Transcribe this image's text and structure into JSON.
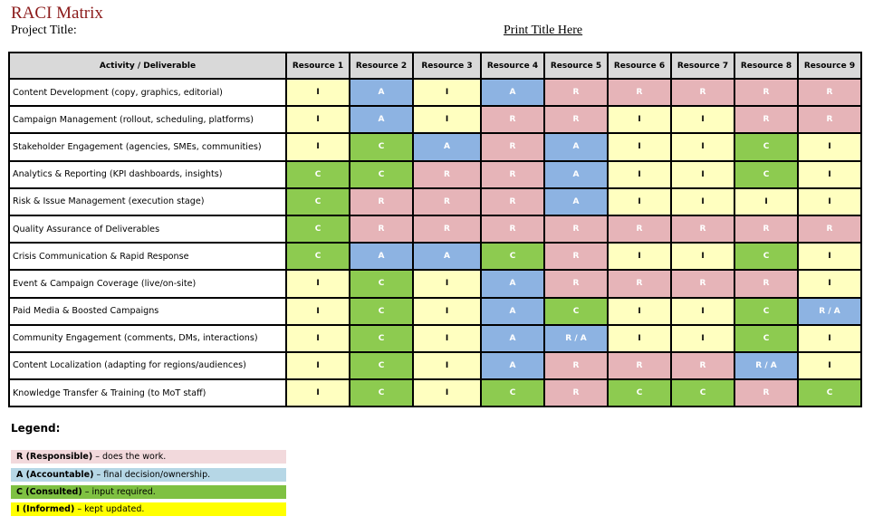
{
  "header": {
    "title": "RACI Matrix",
    "project_label": "Project Title:",
    "print_title": "Print Title Here"
  },
  "table": {
    "activity_header": "Activity / Deliverable",
    "resources": [
      "Resource 1",
      "Resource 2",
      "Resource 3",
      "Resource 4",
      "Resource 5",
      "Resource 6",
      "Resource 7",
      "Resource 8",
      "Resource 9"
    ],
    "rows": [
      {
        "activity": "Content Development (copy, graphics, editorial)",
        "cells": [
          "I",
          "A",
          "I",
          "A",
          "R",
          "R",
          "R",
          "R",
          "R"
        ]
      },
      {
        "activity": "Campaign Management (rollout, scheduling, platforms)",
        "cells": [
          "I",
          "A",
          "I",
          "R",
          "R",
          "I",
          "I",
          "R",
          "R"
        ]
      },
      {
        "activity": "Stakeholder Engagement (agencies, SMEs, communities)",
        "cells": [
          "I",
          "C",
          "A",
          "R",
          "A",
          "I",
          "I",
          "C",
          "I"
        ]
      },
      {
        "activity": "Analytics & Reporting (KPI dashboards, insights)",
        "cells": [
          "C",
          "C",
          "R",
          "R",
          "A",
          "I",
          "I",
          "C",
          "I"
        ]
      },
      {
        "activity": "Risk & Issue Management (execution stage)",
        "cells": [
          "C",
          "R",
          "R",
          "R",
          "A",
          "I",
          "I",
          "I",
          "I"
        ]
      },
      {
        "activity": "Quality Assurance of Deliverables",
        "cells": [
          "C",
          "R",
          "R",
          "R",
          "R",
          "R",
          "R",
          "R",
          "R"
        ]
      },
      {
        "activity": "Crisis Communication & Rapid Response",
        "cells": [
          "C",
          "A",
          "A",
          "C",
          "R",
          "I",
          "I",
          "C",
          "I"
        ]
      },
      {
        "activity": "Event & Campaign Coverage (live/on-site)",
        "cells": [
          "I",
          "C",
          "I",
          "A",
          "R",
          "R",
          "R",
          "R",
          "I"
        ]
      },
      {
        "activity": "Paid Media & Boosted Campaigns",
        "cells": [
          "I",
          "C",
          "I",
          "A",
          "C",
          "I",
          "I",
          "C",
          "R / A"
        ]
      },
      {
        "activity": "Community Engagement (comments, DMs, interactions)",
        "cells": [
          "I",
          "C",
          "I",
          "A",
          "R / A",
          "I",
          "I",
          "C",
          "I"
        ]
      },
      {
        "activity": "Content Localization (adapting for regions/audiences)",
        "cells": [
          "I",
          "C",
          "I",
          "A",
          "R",
          "R",
          "R",
          "R / A",
          "I"
        ]
      },
      {
        "activity": "Knowledge Transfer & Training (to MoT staff)",
        "cells": [
          "I",
          "C",
          "I",
          "C",
          "R",
          "C",
          "C",
          "R",
          "C"
        ]
      }
    ]
  },
  "legend": {
    "title": "Legend:",
    "items": [
      {
        "key": "R (Responsible)",
        "desc": " – does the work.",
        "color": "#f2d9dc"
      },
      {
        "key": "A (Accountable)",
        "desc": " – final decision/ownership.",
        "color": "#b6d7e6"
      },
      {
        "key": "C (Consulted)",
        "desc": " – input required.",
        "color": "#7fc142"
      },
      {
        "key": "I (Informed)",
        "desc": " – kept updated.",
        "color": "#ffff00"
      }
    ]
  },
  "colors": {
    "R": "#e6b4b8",
    "A": "#8db3e2",
    "C": "#8dcb50",
    "I": "#ffffc0",
    "title": "#8b1a1a"
  }
}
